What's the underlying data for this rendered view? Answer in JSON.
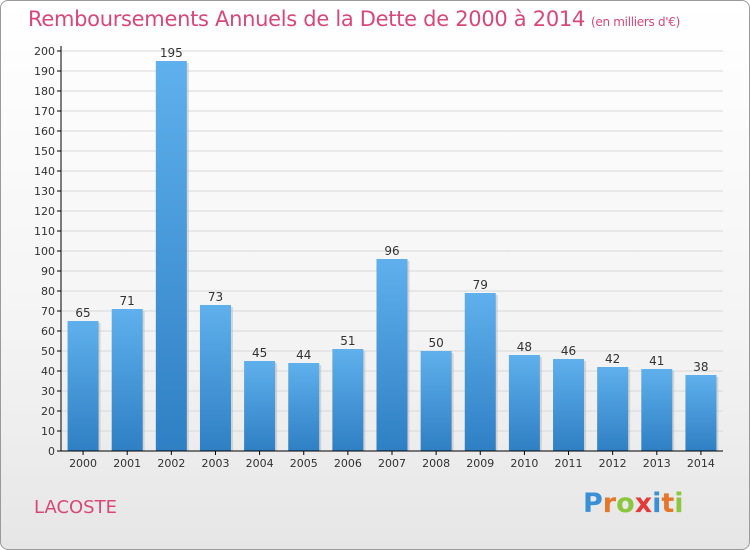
{
  "header": {
    "title": "Remboursements Annuels de la Dette de 2000 à 2014",
    "subtitle": "(en milliers d'€)"
  },
  "footer": {
    "town": "LACOSTE",
    "brand_letters": [
      "P",
      "r",
      "o",
      "x",
      "i",
      "t",
      "i"
    ],
    "brand_colors": [
      "#3a8fd6",
      "#e5762a",
      "#8cc63f",
      "#e53a3a",
      "#3a8fd6",
      "#e5762a",
      "#8cc63f"
    ]
  },
  "colors": {
    "accent": "#d9477a",
    "bar_top": "#5fb0ec",
    "bar_bottom": "#2f7fc4",
    "grid": "#d8d8d8",
    "axis": "#000000"
  },
  "chart_data": {
    "type": "bar",
    "title": "Remboursements Annuels de la Dette de 2000 à 2014",
    "xlabel": "",
    "ylabel": "",
    "categories": [
      "2000",
      "2001",
      "2002",
      "2003",
      "2004",
      "2005",
      "2006",
      "2007",
      "2008",
      "2009",
      "2010",
      "2011",
      "2012",
      "2013",
      "2014"
    ],
    "values": [
      65,
      71,
      195,
      73,
      45,
      44,
      51,
      96,
      50,
      79,
      48,
      46,
      42,
      41,
      38
    ],
    "ylim": [
      0,
      200
    ],
    "ytick_step": 10,
    "grid": true
  }
}
